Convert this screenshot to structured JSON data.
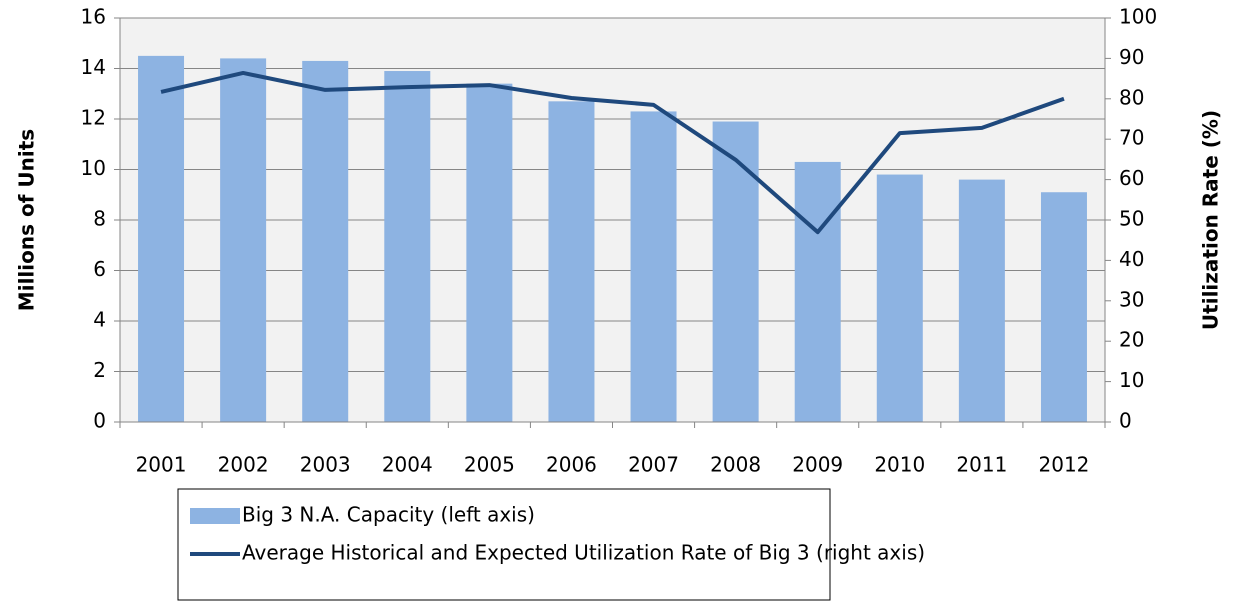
{
  "chart_data": {
    "type": "bar_line",
    "categories": [
      "2001",
      "2002",
      "2003",
      "2004",
      "2005",
      "2006",
      "2007",
      "2008",
      "2009",
      "2010",
      "2011",
      "2012"
    ],
    "series": [
      {
        "name": "Big 3 N.A. Capacity (left axis)",
        "color": "#8db3e2",
        "type": "bar",
        "values": [
          14.5,
          14.4,
          14.3,
          13.9,
          13.4,
          12.7,
          12.3,
          11.9,
          10.3,
          9.8,
          9.6,
          9.1
        ]
      },
      {
        "name": "Average Historical and Expected Utilization Rate of Big 3 (right axis)",
        "color": "#1f497d",
        "type": "line",
        "axis": "y2",
        "values": [
          81.7,
          86.4,
          82.2,
          82.9,
          83.4,
          80.2,
          78.5,
          64.9,
          47.0,
          71.5,
          72.8,
          80.0
        ]
      }
    ],
    "ylabel": "Millions of Units",
    "y2label": "Utilization Rate (%)",
    "ylim": [
      0,
      16
    ],
    "yticks": [
      0,
      2,
      4,
      6,
      8,
      10,
      12,
      14,
      16
    ],
    "y2lim": [
      0,
      100
    ],
    "y2ticks": [
      0,
      10,
      20,
      30,
      40,
      50,
      60,
      70,
      80,
      90,
      100
    ],
    "grid": true,
    "legend": "bottom"
  }
}
